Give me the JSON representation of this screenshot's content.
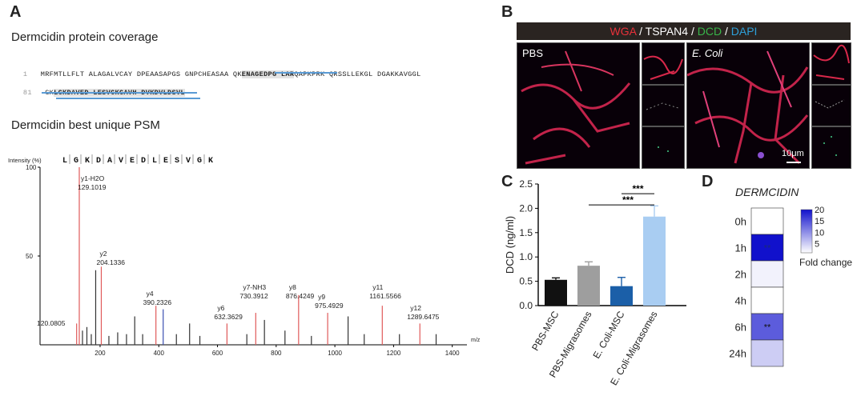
{
  "panelA": {
    "label": "A",
    "coverage_title": "Dermcidin  protein coverage",
    "psm_title": "Dermcidin  best unique PSM",
    "seq1": {
      "num": "1",
      "pre": "MRFMTLLFLT ALAGALVCAY DPEAASAPGS GNPCHEASAA QK",
      "hl": "ENAGEDPG LAR",
      "post": "QAPKPRK QRSSLLEKGL DGAKKAVGGL"
    },
    "seq2": {
      "num": "81",
      "pre": "GK",
      "hl": "LGKDAVED LESVGKGAVH DVKDVLDSVL",
      "post": ""
    },
    "ion_sequence": [
      "L",
      "G",
      "K",
      "D",
      "A",
      "V",
      "E",
      "D",
      "L",
      "E",
      "S",
      "V",
      "G",
      "K"
    ],
    "ylabel": "Intensity (%)",
    "xlabel": "m/z",
    "yticks": [
      "100",
      "50"
    ],
    "xticks": [
      "200",
      "400",
      "600",
      "800",
      "1000",
      "1200",
      "1400"
    ],
    "peak_labels": [
      {
        "ion": "y1-H2O",
        "mz": "129.1019"
      },
      {
        "ion": "y2",
        "mz": "204.1336"
      },
      {
        "ion": "",
        "mz": "120.0805"
      },
      {
        "ion": "y4",
        "mz": "390.2326"
      },
      {
        "ion": "y6",
        "mz": "632.3629"
      },
      {
        "ion": "y7-NH3",
        "mz": "730.3912"
      },
      {
        "ion": "y8",
        "mz": "876.4249"
      },
      {
        "ion": "y9",
        "mz": "975.4929"
      },
      {
        "ion": "y11",
        "mz": "1161.5566"
      },
      {
        "ion": "y12",
        "mz": "1289.6475"
      }
    ]
  },
  "panelB": {
    "label": "B",
    "stain_parts": [
      {
        "text": "WGA",
        "color": "#e8313a"
      },
      {
        "text": " / ",
        "color": "#ffffff"
      },
      {
        "text": "TSPAN4",
        "color": "#ffffff"
      },
      {
        "text": " / ",
        "color": "#ffffff"
      },
      {
        "text": "DCD",
        "color": "#39b54a"
      },
      {
        "text": " / ",
        "color": "#ffffff"
      },
      {
        "text": "DAPI",
        "color": "#2e9fd8"
      }
    ],
    "left_label": "PBS",
    "right_label": "E. Coli",
    "scale": "10μm"
  },
  "panelC": {
    "label": "C",
    "significance": [
      "***",
      "***"
    ]
  },
  "panelD": {
    "label": "D",
    "gene": "DERMCIDIN",
    "stars": [
      "**",
      "**"
    ],
    "colorbar_ticks": [
      "20",
      "15",
      "10",
      "5"
    ],
    "colorbar_label": "Fold change"
  },
  "chart_data": [
    {
      "type": "scatter",
      "subtype": "mass-spectrum",
      "xlabel": "m/z",
      "ylabel": "Intensity (%)",
      "xlim": [
        50,
        1450
      ],
      "ylim": [
        0,
        100
      ],
      "peaks": [
        {
          "mz": 120.08,
          "y": 12,
          "label": "120.0805"
        },
        {
          "mz": 129.1,
          "y": 100,
          "label": "y1-H2O 129.1019"
        },
        {
          "mz": 140,
          "y": 8
        },
        {
          "mz": 155,
          "y": 10
        },
        {
          "mz": 170,
          "y": 6
        },
        {
          "mz": 185,
          "y": 42
        },
        {
          "mz": 204.13,
          "y": 44,
          "label": "y2 204.1336"
        },
        {
          "mz": 230,
          "y": 5
        },
        {
          "mz": 260,
          "y": 7
        },
        {
          "mz": 290,
          "y": 6
        },
        {
          "mz": 318,
          "y": 16
        },
        {
          "mz": 345,
          "y": 6
        },
        {
          "mz": 390.23,
          "y": 22,
          "label": "y4 390.2326"
        },
        {
          "mz": 415,
          "y": 20
        },
        {
          "mz": 460,
          "y": 6
        },
        {
          "mz": 505,
          "y": 12
        },
        {
          "mz": 540,
          "y": 5
        },
        {
          "mz": 632.36,
          "y": 12,
          "label": "y6 632.3629"
        },
        {
          "mz": 700,
          "y": 6
        },
        {
          "mz": 730.39,
          "y": 18,
          "label": "y7-NH3 730.3912"
        },
        {
          "mz": 760,
          "y": 14
        },
        {
          "mz": 830,
          "y": 8
        },
        {
          "mz": 876.42,
          "y": 28,
          "label": "y8 876.4249"
        },
        {
          "mz": 920,
          "y": 5
        },
        {
          "mz": 975.49,
          "y": 18,
          "label": "y9 975.4929"
        },
        {
          "mz": 1045,
          "y": 16
        },
        {
          "mz": 1100,
          "y": 6
        },
        {
          "mz": 1161.56,
          "y": 22,
          "label": "y11 1161.5566"
        },
        {
          "mz": 1220,
          "y": 6
        },
        {
          "mz": 1289.65,
          "y": 12,
          "label": "y12 1289.6475"
        },
        {
          "mz": 1345,
          "y": 6
        }
      ]
    },
    {
      "type": "bar",
      "ylabel": "DCD (ng/ml)",
      "categories": [
        "PBS-MSC",
        "PBS-Migrasomes",
        "E. Coli-MSC",
        "E. Coli-Migrasomes"
      ],
      "values": [
        0.53,
        0.82,
        0.4,
        1.83
      ],
      "errors": [
        0.04,
        0.08,
        0.18,
        0.22
      ],
      "colors": [
        "#111111",
        "#9e9e9e",
        "#1b5fa8",
        "#a9cdf2"
      ],
      "ylim": [
        0,
        2.5
      ],
      "yticks": [
        0.0,
        0.5,
        1.0,
        1.5,
        2.0,
        2.5
      ]
    },
    {
      "type": "heatmap",
      "rows": [
        "0h",
        "1h",
        "2h",
        "4h",
        "6h",
        "24h"
      ],
      "values": [
        1,
        20,
        2,
        1,
        14,
        5
      ],
      "colorbar_range": [
        1,
        20
      ]
    }
  ]
}
